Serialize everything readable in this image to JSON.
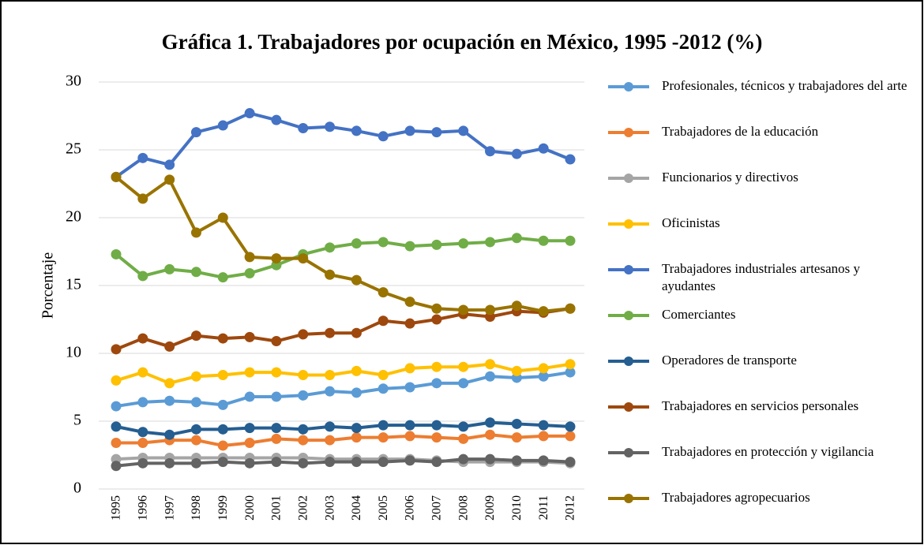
{
  "chart_data": {
    "type": "line",
    "title": "Gráfica 1. Trabajadores por ocupación en México, 1995 -2012 (%)",
    "y_label": "Porcentaje",
    "categories": [
      "1995",
      "1996",
      "1997",
      "1998",
      "1999",
      "2000",
      "2001",
      "2002",
      "2003",
      "2004",
      "2005",
      "2006",
      "2007",
      "2008",
      "2009",
      "2010",
      "2011",
      "2012"
    ],
    "ylim": [
      0,
      30
    ],
    "yticks": [
      0,
      5,
      10,
      15,
      20,
      25,
      30
    ],
    "grid": true,
    "legend": "right",
    "series": [
      {
        "name": "Profesionales, técnicos y trabajadores del arte",
        "color": "#5b9bd5",
        "values": [
          6.1,
          6.4,
          6.5,
          6.4,
          6.2,
          6.8,
          6.8,
          6.9,
          7.2,
          7.1,
          7.4,
          7.5,
          7.8,
          7.8,
          8.3,
          8.2,
          8.3,
          8.6
        ]
      },
      {
        "name": "Trabajadores de la educación",
        "color": "#ed7d31",
        "values": [
          3.4,
          3.4,
          3.6,
          3.6,
          3.2,
          3.4,
          3.7,
          3.6,
          3.6,
          3.8,
          3.8,
          3.9,
          3.8,
          3.7,
          4.0,
          3.8,
          3.9,
          3.9
        ]
      },
      {
        "name": "Funcionarios y directivos",
        "color": "#a5a5a5",
        "values": [
          2.2,
          2.3,
          2.3,
          2.3,
          2.3,
          2.3,
          2.3,
          2.3,
          2.2,
          2.2,
          2.2,
          2.2,
          2.1,
          2.0,
          2.0,
          2.0,
          2.0,
          1.9
        ]
      },
      {
        "name": "Oficinistas",
        "color": "#ffc000",
        "values": [
          8.0,
          8.6,
          7.8,
          8.3,
          8.4,
          8.6,
          8.6,
          8.4,
          8.4,
          8.7,
          8.4,
          8.9,
          9.0,
          9.0,
          9.2,
          8.7,
          8.9,
          9.2
        ]
      },
      {
        "name": "Trabajadores industriales artesanos y ayudantes",
        "color": "#4472c4",
        "values": [
          23.0,
          24.4,
          23.9,
          26.3,
          26.8,
          27.7,
          27.2,
          26.6,
          26.7,
          26.4,
          26.0,
          26.4,
          26.3,
          26.4,
          24.9,
          24.7,
          25.1,
          24.3
        ]
      },
      {
        "name": "Comerciantes",
        "color": "#70ad47",
        "values": [
          17.3,
          15.7,
          16.2,
          16.0,
          15.6,
          15.9,
          16.5,
          17.3,
          17.8,
          18.1,
          18.2,
          17.9,
          18.0,
          18.1,
          18.2,
          18.5,
          18.3,
          18.3
        ]
      },
      {
        "name": "Operadores de transporte",
        "color": "#255e91",
        "values": [
          4.6,
          4.2,
          4.0,
          4.4,
          4.4,
          4.5,
          4.5,
          4.4,
          4.6,
          4.5,
          4.7,
          4.7,
          4.7,
          4.6,
          4.9,
          4.8,
          4.7,
          4.6
        ]
      },
      {
        "name": "Trabajadores en servicios personales",
        "color": "#9e480e",
        "values": [
          10.3,
          11.1,
          10.5,
          11.3,
          11.1,
          11.2,
          10.9,
          11.4,
          11.5,
          11.5,
          12.4,
          12.2,
          12.5,
          12.9,
          12.7,
          13.1,
          13.0,
          13.3
        ]
      },
      {
        "name": "Trabajadores en protección y vigilancia",
        "color": "#636363",
        "values": [
          1.7,
          1.9,
          1.9,
          1.9,
          2.0,
          1.9,
          2.0,
          1.9,
          2.0,
          2.0,
          2.0,
          2.1,
          2.0,
          2.2,
          2.2,
          2.1,
          2.1,
          2.0
        ]
      },
      {
        "name": "Trabajadores agropecuarios",
        "color": "#997300",
        "values": [
          23.0,
          21.4,
          22.8,
          18.9,
          20.0,
          17.1,
          17.0,
          17.0,
          15.8,
          15.4,
          14.5,
          13.8,
          13.3,
          13.2,
          13.2,
          13.5,
          13.1,
          13.3
        ]
      }
    ]
  }
}
